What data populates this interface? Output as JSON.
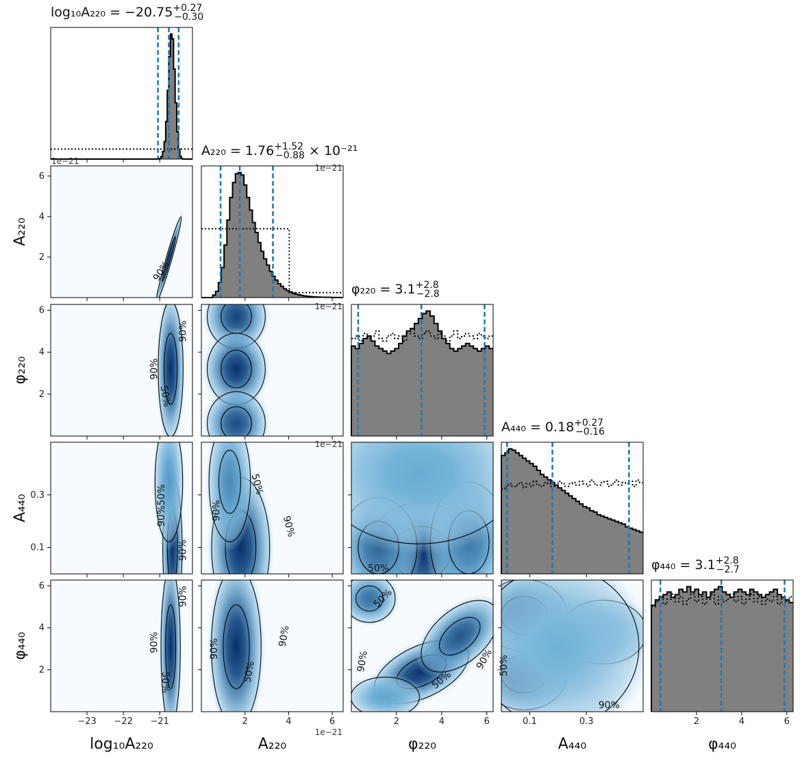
{
  "chart_data": {
    "type": "corner",
    "parameters": [
      {
        "name": "log10A220",
        "label": "log₁₀A₂₂₀",
        "range": [
          -24.0,
          -20.1
        ],
        "ticks": [
          -23,
          -22,
          -21
        ],
        "tick_labels": [
          "−23",
          "−22",
          "−21"
        ],
        "sci": "",
        "title": {
          "text": "log₁₀A₂₂₀ = −20.75",
          "sup": "+0.27",
          "sub": "−0.30",
          "suffix": ""
        },
        "median": -20.75,
        "q16": -21.05,
        "q84": -20.48
      },
      {
        "name": "A220",
        "label": "A₂₂₀",
        "range": [
          0.0,
          6.5
        ],
        "ticks": [
          2,
          4,
          6
        ],
        "tick_labels": [
          "2",
          "4",
          "6"
        ],
        "sci": "1e−21",
        "title": {
          "text": "A₂₂₀ = 1.76",
          "sup": "+1.52",
          "sub": "−0.88",
          "suffix": " × 10⁻²¹"
        },
        "median": 1.76,
        "q16": 0.88,
        "q84": 3.28
      },
      {
        "name": "phi220",
        "label": "φ₂₂₀",
        "range": [
          0.0,
          6.28
        ],
        "ticks": [
          2,
          4,
          6
        ],
        "tick_labels": [
          "2",
          "4",
          "6"
        ],
        "sci": "",
        "title": {
          "text": "φ₂₂₀ = 3.1",
          "sup": "+2.8",
          "sub": "−2.8",
          "suffix": ""
        },
        "median": 3.1,
        "q16": 0.3,
        "q84": 5.9
      },
      {
        "name": "A440",
        "label": "A₄₄₀",
        "range": [
          0.0,
          0.5
        ],
        "ticks": [
          0.1,
          0.3
        ],
        "tick_labels": [
          "0.1",
          "0.3"
        ],
        "sci": "",
        "title": {
          "text": "A₄₄₀ = 0.18",
          "sup": "+0.27",
          "sub": "−0.16",
          "suffix": ""
        },
        "median": 0.18,
        "q16": 0.02,
        "q84": 0.45
      },
      {
        "name": "phi440",
        "label": "φ₄₄₀",
        "range": [
          0.0,
          6.28
        ],
        "ticks": [
          2,
          4,
          6
        ],
        "tick_labels": [
          "2",
          "4",
          "6"
        ],
        "sci": "",
        "title": {
          "text": "φ₄₄₀ = 3.1",
          "sup": "+2.8",
          "sub": "−2.7",
          "suffix": ""
        },
        "median": 3.1,
        "q16": 0.4,
        "q84": 5.9
      }
    ],
    "contour_levels": [
      "50%",
      "90%"
    ],
    "colors": {
      "hist_fill": "#808080",
      "hist_edge": "#000000",
      "quantile_line": "#1f77b4",
      "density_low": "#f7fbff",
      "density_high": "#08306b"
    },
    "prior_style": "dotted",
    "histograms": [
      {
        "bins_lo": -24.0,
        "bins_hi": -20.1,
        "values": [
          0,
          0,
          0,
          0,
          0,
          0,
          0,
          0,
          0,
          0,
          0,
          0,
          0,
          0,
          0,
          0,
          0,
          0,
          0,
          0,
          0,
          0,
          0,
          0,
          0,
          0,
          0,
          0,
          0,
          0,
          0,
          0,
          0,
          0,
          0,
          0,
          0,
          0,
          0,
          0,
          0,
          0,
          0,
          0,
          0,
          0,
          0,
          0,
          0,
          0,
          0,
          0,
          0,
          0,
          0,
          0,
          0,
          0,
          0,
          0,
          0,
          0,
          0,
          0,
          0,
          0,
          0,
          0,
          0,
          0.005,
          0.02,
          0.06,
          0.14,
          0.3,
          0.55,
          0.82,
          1.0,
          0.96,
          0.72,
          0.45,
          0.22,
          0.08,
          0.02,
          0.003,
          0,
          0,
          0,
          0,
          0,
          0
        ],
        "prior": [
          0.08,
          0.08,
          0.08,
          0.08,
          0.08,
          0.08,
          0.08,
          0.08,
          0.08,
          0.08,
          0.08,
          0.08,
          0.08,
          0.08,
          0.08,
          0.08,
          0.08,
          0.08,
          0.08,
          0.08,
          0.08,
          0.08,
          0.08,
          0.08,
          0.08,
          0.08,
          0.08,
          0.08,
          0.08,
          0.08,
          0.08,
          0.08,
          0.08,
          0.08,
          0.08,
          0.08,
          0.08,
          0.08,
          0.08,
          0.08,
          0.08,
          0.08,
          0.08,
          0.08,
          0.08,
          0.08,
          0.08,
          0.08,
          0.08,
          0.08,
          0.08,
          0.08,
          0.08,
          0.08,
          0.08,
          0.08,
          0.08,
          0.08,
          0.08,
          0.08,
          0.08,
          0.08,
          0.08,
          0.08,
          0.08,
          0.08,
          0.08,
          0.08,
          0.08,
          0.08,
          0.08,
          0.08,
          0.08,
          0.08,
          0.08,
          0.08,
          0.08,
          0.08,
          0.08,
          0.08,
          0.08,
          0.08,
          0.08,
          0.08,
          0.08,
          0.08,
          0.08,
          0.08,
          0.08,
          0.08
        ]
      },
      {
        "bins_lo": 0.0,
        "bins_hi": 6.5,
        "values": [
          0,
          0,
          0,
          0,
          0.02,
          0.05,
          0.12,
          0.24,
          0.42,
          0.62,
          0.8,
          0.92,
          0.99,
          1.0,
          0.98,
          0.9,
          0.8,
          0.7,
          0.6,
          0.52,
          0.44,
          0.37,
          0.31,
          0.26,
          0.21,
          0.17,
          0.14,
          0.11,
          0.09,
          0.07,
          0.055,
          0.045,
          0.035,
          0.028,
          0.022,
          0.017,
          0.013,
          0.01,
          0.008,
          0.006,
          0.005,
          0.004,
          0.003,
          0.003,
          0.002,
          0.002,
          0.001,
          0.001,
          0.001,
          0
        ],
        "prior": [
          0.55,
          0.55,
          0.55,
          0.55,
          0.55,
          0.55,
          0.55,
          0.55,
          0.55,
          0.55,
          0.55,
          0.55,
          0.55,
          0.55,
          0.55,
          0.55,
          0.55,
          0.55,
          0.55,
          0.55,
          0.55,
          0.55,
          0.55,
          0.55,
          0.55,
          0.55,
          0.55,
          0.55,
          0.55,
          0.55,
          0.55,
          0.04,
          0.04,
          0.04,
          0.04,
          0.04,
          0.04,
          0.04,
          0.04,
          0.04,
          0.04,
          0.04,
          0.04,
          0.04,
          0.04,
          0.04,
          0.04,
          0.04,
          0.04,
          0.04
        ]
      },
      {
        "bins_lo": 0.0,
        "bins_hi": 6.28,
        "values": [
          0.72,
          0.7,
          0.74,
          0.78,
          0.8,
          0.76,
          0.72,
          0.7,
          0.68,
          0.66,
          0.68,
          0.7,
          0.74,
          0.8,
          0.84,
          0.86,
          0.9,
          0.94,
          0.98,
          1.0,
          0.96,
          0.9,
          0.84,
          0.78,
          0.74,
          0.7,
          0.68,
          0.7,
          0.72,
          0.74,
          0.72,
          0.7,
          0.68,
          0.7,
          0.72,
          0.7
        ],
        "prior": [
          0.78,
          0.8,
          0.76,
          0.82,
          0.78,
          0.8,
          0.84,
          0.78,
          0.76,
          0.8,
          0.82,
          0.78,
          0.8,
          0.76,
          0.82,
          0.86,
          0.8,
          0.78,
          0.82,
          0.84,
          0.8,
          0.78,
          0.82,
          0.8,
          0.76,
          0.8,
          0.84,
          0.78,
          0.8,
          0.82,
          0.8,
          0.78,
          0.82,
          0.8,
          0.78,
          0.8
        ]
      },
      {
        "bins_lo": 0.0,
        "bins_hi": 0.5,
        "values": [
          0.88,
          0.9,
          0.93,
          0.92,
          0.9,
          0.88,
          0.86,
          0.84,
          0.82,
          0.8,
          0.77,
          0.74,
          0.72,
          0.7,
          0.68,
          0.66,
          0.64,
          0.62,
          0.6,
          0.58,
          0.56,
          0.54,
          0.52,
          0.5,
          0.49,
          0.47,
          0.46,
          0.44,
          0.43,
          0.42,
          0.41,
          0.4,
          0.39,
          0.38,
          0.37,
          0.35,
          0.34,
          0.33,
          0.32,
          0.31
        ],
        "prior": [
          0.68,
          0.7,
          0.72,
          0.7,
          0.71,
          0.73,
          0.69,
          0.72,
          0.7,
          0.74,
          0.71,
          0.7,
          0.73,
          0.72,
          0.7,
          0.71,
          0.74,
          0.72,
          0.7,
          0.72,
          0.73,
          0.71,
          0.74,
          0.72,
          0.7,
          0.75,
          0.72,
          0.71,
          0.73,
          0.74,
          0.7,
          0.72,
          0.75,
          0.71,
          0.73,
          0.72,
          0.74,
          0.7,
          0.75,
          0.73
        ]
      },
      {
        "bins_lo": 0.0,
        "bins_hi": 6.28,
        "values": [
          0.8,
          0.84,
          0.86,
          0.88,
          0.9,
          0.86,
          0.88,
          0.92,
          0.9,
          0.94,
          0.9,
          0.92,
          0.88,
          0.9,
          0.86,
          0.9,
          0.92,
          0.94,
          0.9,
          0.88,
          0.86,
          0.9,
          0.92,
          0.9,
          0.88,
          0.92,
          0.9,
          0.88,
          0.86,
          0.88,
          0.9,
          0.92,
          0.88,
          0.86,
          0.84,
          0.82
        ],
        "prior": [
          0.84,
          0.88,
          0.92,
          0.86,
          0.9,
          0.94,
          0.88,
          0.92,
          0.86,
          0.9,
          0.94,
          0.88,
          0.92,
          0.86,
          0.9,
          0.94,
          0.86,
          0.92,
          0.88,
          0.9,
          0.94,
          0.88,
          0.92,
          0.86,
          0.9,
          0.94,
          0.88,
          0.92,
          0.86,
          0.9,
          0.88,
          0.92,
          0.86,
          0.9,
          0.88,
          0.92
        ]
      }
    ],
    "densities": [
      {
        "row": 1,
        "col": 0,
        "blobs": [
          {
            "cx": -20.75,
            "cy": 1.9,
            "sx": 0.18,
            "sy": 1.1,
            "rho": 0.97,
            "w": 1.0
          }
        ]
      },
      {
        "row": 2,
        "col": 0,
        "blobs": [
          {
            "cx": -20.7,
            "cy": 3.2,
            "sx": 0.18,
            "sy": 1.7,
            "rho": 0.0,
            "w": 1.0
          }
        ]
      },
      {
        "row": 2,
        "col": 1,
        "blobs": [
          {
            "cx": 1.6,
            "cy": 5.7,
            "sx": 0.7,
            "sy": 0.8,
            "rho": 0,
            "w": 0.9
          },
          {
            "cx": 1.6,
            "cy": 3.2,
            "sx": 0.7,
            "sy": 0.9,
            "rho": 0,
            "w": 1.0
          },
          {
            "cx": 1.6,
            "cy": 0.6,
            "sx": 0.7,
            "sy": 0.8,
            "rho": 0,
            "w": 0.85
          }
        ]
      },
      {
        "row": 3,
        "col": 0,
        "blobs": [
          {
            "cx": -20.65,
            "cy": 0.1,
            "sx": 0.14,
            "sy": 0.14,
            "rho": 0,
            "w": 1.0
          },
          {
            "cx": -20.75,
            "cy": 0.35,
            "sx": 0.2,
            "sy": 0.12,
            "rho": 0,
            "w": 0.4
          }
        ]
      },
      {
        "row": 3,
        "col": 1,
        "blobs": [
          {
            "cx": 1.8,
            "cy": 0.1,
            "sx": 0.7,
            "sy": 0.14,
            "rho": 0,
            "w": 1.0
          },
          {
            "cx": 1.3,
            "cy": 0.35,
            "sx": 0.5,
            "sy": 0.12,
            "rho": 0,
            "w": 0.5
          }
        ]
      },
      {
        "row": 3,
        "col": 2,
        "blobs": [
          {
            "cx": 3.1,
            "cy": 0.08,
            "sx": 1.3,
            "sy": 0.1,
            "rho": 0,
            "w": 1.0
          },
          {
            "cx": 1.2,
            "cy": 0.1,
            "sx": 0.9,
            "sy": 0.1,
            "rho": 0,
            "w": 0.7
          },
          {
            "cx": 5.2,
            "cy": 0.12,
            "sx": 0.9,
            "sy": 0.12,
            "rho": 0,
            "w": 0.6
          },
          {
            "cx": 3.0,
            "cy": 0.38,
            "sx": 2.3,
            "sy": 0.14,
            "rho": 0,
            "w": 0.3
          }
        ]
      },
      {
        "row": 4,
        "col": 0,
        "blobs": [
          {
            "cx": -20.7,
            "cy": 3.1,
            "sx": 0.14,
            "sy": 2.0,
            "rho": 0,
            "w": 1.0
          }
        ]
      },
      {
        "row": 4,
        "col": 1,
        "blobs": [
          {
            "cx": 1.6,
            "cy": 3.1,
            "sx": 0.6,
            "sy": 2.0,
            "rho": 0,
            "w": 1.0
          }
        ]
      },
      {
        "row": 4,
        "col": 2,
        "blobs": [
          {
            "cx": 3.1,
            "cy": 1.9,
            "sx": 1.1,
            "sy": 0.8,
            "rho": 0.5,
            "w": 1.0
          },
          {
            "cx": 4.8,
            "cy": 3.6,
            "sx": 0.9,
            "sy": 0.9,
            "rho": 0.5,
            "w": 0.8
          },
          {
            "cx": 0.8,
            "cy": 5.4,
            "sx": 0.6,
            "sy": 0.6,
            "rho": 0,
            "w": 0.65
          },
          {
            "cx": 1.5,
            "cy": 0.7,
            "sx": 0.8,
            "sy": 0.5,
            "rho": 0,
            "w": 0.35
          }
        ]
      },
      {
        "row": 4,
        "col": 3,
        "blobs": [
          {
            "cx": 0.08,
            "cy": 1.8,
            "sx": 0.08,
            "sy": 0.9,
            "rho": 0,
            "w": 1.0
          },
          {
            "cx": 0.08,
            "cy": 4.6,
            "sx": 0.08,
            "sy": 0.9,
            "rho": 0,
            "w": 0.9
          },
          {
            "cx": 0.36,
            "cy": 3.8,
            "sx": 0.08,
            "sy": 0.8,
            "rho": 0,
            "w": 0.25
          },
          {
            "cx": 0.2,
            "cy": 3.1,
            "sx": 0.15,
            "sy": 2.0,
            "rho": 0,
            "w": 0.25
          }
        ]
      }
    ],
    "contour_label_positions": [
      {
        "row": 1,
        "col": 0,
        "label": "90%",
        "x": -20.95,
        "y": 1.3,
        "angle": -58
      },
      {
        "row": 2,
        "col": 0,
        "label": "90%",
        "x": -20.35,
        "y": 5.0,
        "angle": -90
      },
      {
        "row": 2,
        "col": 0,
        "label": "90%",
        "x": -21.15,
        "y": 3.2,
        "angle": -90
      },
      {
        "row": 2,
        "col": 0,
        "label": "50%",
        "x": -20.85,
        "y": 1.9,
        "angle": 80
      },
      {
        "row": 3,
        "col": 0,
        "label": "50%",
        "x": -20.95,
        "y": 0.3,
        "angle": -90
      },
      {
        "row": 3,
        "col": 0,
        "label": "90%",
        "x": -20.95,
        "y": 0.22,
        "angle": -90
      },
      {
        "row": 3,
        "col": 0,
        "label": "90%",
        "x": -20.35,
        "y": 0.09,
        "angle": -90
      },
      {
        "row": 3,
        "col": 1,
        "label": "90%",
        "x": 0.7,
        "y": 0.24,
        "angle": -90
      },
      {
        "row": 3,
        "col": 1,
        "label": "50%",
        "x": 2.55,
        "y": 0.34,
        "angle": 75
      },
      {
        "row": 3,
        "col": 1,
        "label": "90%",
        "x": 4.0,
        "y": 0.18,
        "angle": 75
      },
      {
        "row": 3,
        "col": 2,
        "label": "50%",
        "x": 1.2,
        "y": 0.02,
        "angle": 0
      },
      {
        "row": 4,
        "col": 0,
        "label": "90%",
        "x": -21.15,
        "y": 3.3,
        "angle": -90
      },
      {
        "row": 4,
        "col": 0,
        "label": "50%",
        "x": -20.85,
        "y": 1.4,
        "angle": 90
      },
      {
        "row": 4,
        "col": 0,
        "label": "90%",
        "x": -20.35,
        "y": 5.5,
        "angle": -90
      },
      {
        "row": 4,
        "col": 1,
        "label": "90%",
        "x": 0.6,
        "y": 3.0,
        "angle": -90
      },
      {
        "row": 4,
        "col": 1,
        "label": "50%",
        "x": 2.2,
        "y": 1.9,
        "angle": -80
      },
      {
        "row": 4,
        "col": 1,
        "label": "90%",
        "x": 3.8,
        "y": 3.6,
        "angle": -80
      },
      {
        "row": 4,
        "col": 2,
        "label": "50%",
        "x": 1.4,
        "y": 5.4,
        "angle": -45
      },
      {
        "row": 4,
        "col": 2,
        "label": "90%",
        "x": 0.5,
        "y": 2.4,
        "angle": -80
      },
      {
        "row": 4,
        "col": 2,
        "label": "50%",
        "x": 4.0,
        "y": 1.5,
        "angle": -40
      },
      {
        "row": 4,
        "col": 2,
        "label": "90%",
        "x": 5.9,
        "y": 2.5,
        "angle": -60
      },
      {
        "row": 4,
        "col": 3,
        "label": "50%",
        "x": 0.01,
        "y": 2.2,
        "angle": -90
      },
      {
        "row": 4,
        "col": 3,
        "label": "90%",
        "x": 0.38,
        "y": 0.3,
        "angle": 0
      }
    ]
  }
}
